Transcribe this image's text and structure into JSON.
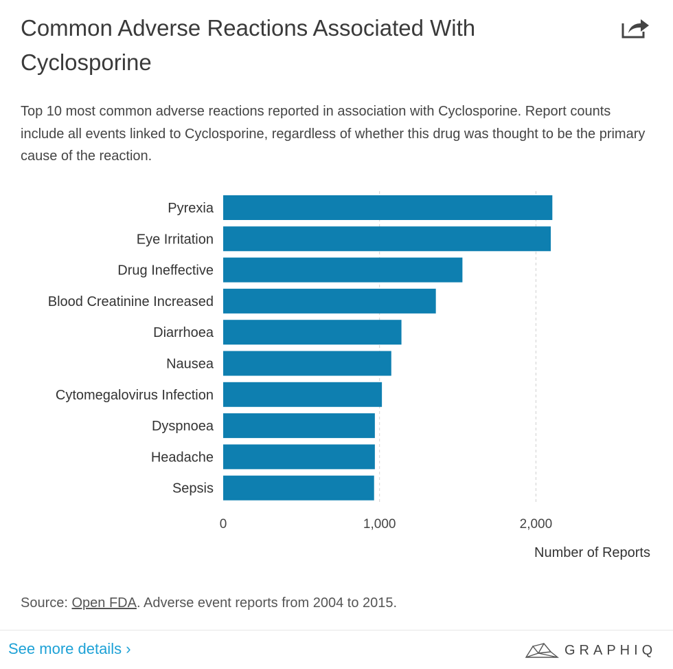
{
  "header": {
    "title": "Common Adverse Reactions Associated With Cyclosporine",
    "subtitle": "Top 10 most common adverse reactions reported in association with Cyclosporine. Report counts include all events linked to Cyclosporine, regardless of whether this drug was thought to be the primary cause of the reaction.",
    "share_icon": "share-icon"
  },
  "chart_data": {
    "type": "bar",
    "orientation": "horizontal",
    "title": "Common Adverse Reactions Associated With Cyclosporine",
    "xlabel": "Number of Reports",
    "ylabel": "",
    "categories": [
      "Pyrexia",
      "Eye Irritation",
      "Drug Ineffective",
      "Blood Creatinine Increased",
      "Diarrhoea",
      "Nausea",
      "Cytomegalovirus Infection",
      "Dyspnoea",
      "Headache",
      "Sepsis"
    ],
    "values": [
      2105,
      2095,
      1530,
      1360,
      1140,
      1075,
      1015,
      970,
      970,
      965
    ],
    "xlim": [
      0,
      2200
    ],
    "xticks": [
      0,
      1000,
      2000
    ],
    "xtick_labels": [
      "0",
      "1,000",
      "2,000"
    ],
    "grid": "vertical dashed",
    "bar_color": "#0e7fb0"
  },
  "footer": {
    "source_prefix": "Source: ",
    "source_link": "Open FDA",
    "source_suffix": ". Adverse event reports from 2004 to 2015.",
    "more_label": "See more details ›",
    "brand": "GRAPHIQ",
    "brand_icon": "graphiq-logo-icon"
  }
}
